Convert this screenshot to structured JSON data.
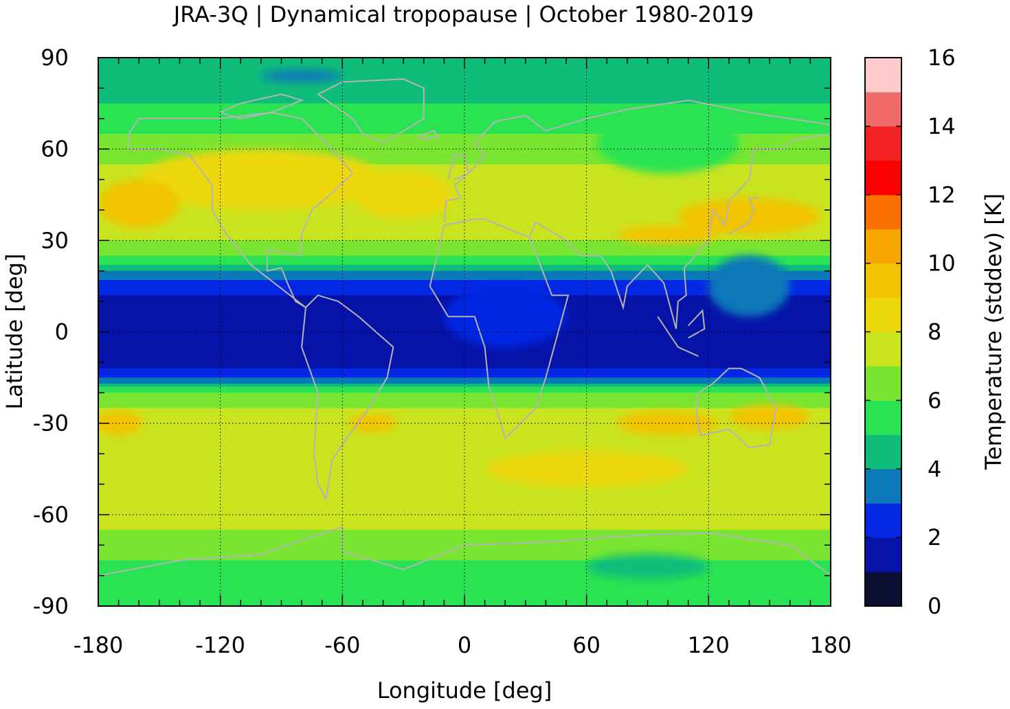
{
  "chart_data": {
    "type": "heatmap",
    "title": "JRA-3Q | Dynamical tropopause | October 1980-2019",
    "xlabel": "Longitude [deg]",
    "ylabel": "Latitude [deg]",
    "xlim": [
      -180,
      180
    ],
    "ylim": [
      -90,
      90
    ],
    "x_ticks": [
      -180,
      -120,
      -60,
      0,
      60,
      120,
      180
    ],
    "y_ticks": [
      90,
      60,
      30,
      0,
      -30,
      -60,
      -90
    ],
    "x_tick_labels": [
      "-180",
      "-120",
      "-60",
      "0",
      "60",
      "120",
      "180"
    ],
    "y_tick_labels": [
      "90",
      "60",
      "30",
      "0",
      "-30",
      "-60",
      "-90"
    ],
    "grid": true,
    "colorbar": {
      "label": "Temperature (stddev) [K]",
      "range": [
        0,
        16
      ],
      "ticks": [
        16,
        14,
        12,
        10,
        8,
        6,
        4,
        2,
        0
      ],
      "tick_labels": [
        "16",
        "14",
        "12",
        "10",
        "8",
        "6",
        "4",
        "2",
        "0"
      ],
      "levels": [
        {
          "from": 0,
          "to": 1,
          "color": "#0b0e33"
        },
        {
          "from": 1,
          "to": 2,
          "color": "#0613a8"
        },
        {
          "from": 2,
          "to": 3,
          "color": "#0428e3"
        },
        {
          "from": 3,
          "to": 4,
          "color": "#0a78b9"
        },
        {
          "from": 4,
          "to": 5,
          "color": "#0fbd7a"
        },
        {
          "from": 5,
          "to": 6,
          "color": "#2ae352"
        },
        {
          "from": 6,
          "to": 7,
          "color": "#79e531"
        },
        {
          "from": 7,
          "to": 8,
          "color": "#c8e41f"
        },
        {
          "from": 8,
          "to": 9,
          "color": "#ecd80b"
        },
        {
          "from": 9,
          "to": 10,
          "color": "#f2c400"
        },
        {
          "from": 10,
          "to": 11,
          "color": "#f7a600"
        },
        {
          "from": 11,
          "to": 12,
          "color": "#fb6e00"
        },
        {
          "from": 12,
          "to": 13,
          "color": "#ff0000"
        },
        {
          "from": 13,
          "to": 14,
          "color": "#f32222"
        },
        {
          "from": 14,
          "to": 15,
          "color": "#f16a6a"
        },
        {
          "from": 15,
          "to": 16,
          "color": "#ffcccc"
        }
      ]
    },
    "zonal_mean_profile": {
      "lat": [
        90,
        80,
        70,
        60,
        50,
        40,
        30,
        25,
        20,
        15,
        10,
        0,
        -10,
        -15,
        -20,
        -25,
        -30,
        -40,
        -50,
        -60,
        -70,
        -80,
        -90
      ],
      "values": [
        4.5,
        4.5,
        5.5,
        6.5,
        7.5,
        8.0,
        7.0,
        6.0,
        4.0,
        2.5,
        1.5,
        1.5,
        1.5,
        3.0,
        6.0,
        7.0,
        7.5,
        7.0,
        7.5,
        7.5,
        6.5,
        5.5,
        5.5
      ]
    }
  }
}
